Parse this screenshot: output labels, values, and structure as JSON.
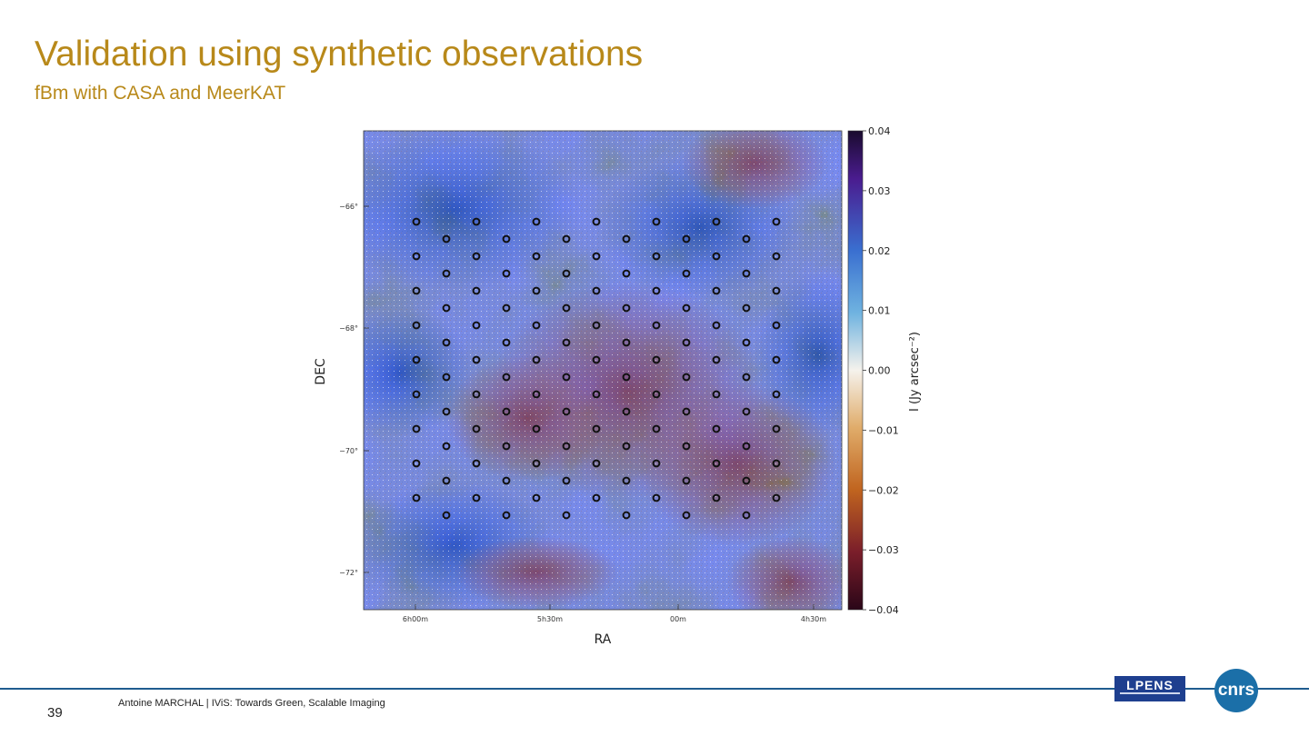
{
  "slide": {
    "title": "Validation using synthetic observations",
    "subtitle": "fBm with CASA and MeerKAT",
    "page_number": "39",
    "footer": "Antoine MARCHAL   | IViS: Towards Green, Scalable Imaging"
  },
  "logos": {
    "lpens": "LPENS",
    "cnrs": "cnrs"
  },
  "figure": {
    "xlabel": "RA",
    "ylabel": "DEC",
    "x_ticks": [
      "6h00m",
      "5h30m",
      "00m",
      "4h30m"
    ],
    "y_ticks": [
      "−66°",
      "−68°",
      "−70°",
      "−72°"
    ],
    "colorbar_label": "I (Jy arcsec⁻²)",
    "colorbar_ticks": [
      "0.04",
      "0.03",
      "0.02",
      "0.01",
      "0.00",
      "−0.01",
      "−0.02",
      "−0.03",
      "−0.04"
    ],
    "colorbar_range": [
      -0.04,
      0.04
    ],
    "colors": {
      "blue": "#3f88c8",
      "white": "#f4f4f2",
      "orange": "#c86a2a",
      "purple": "#3b0f6f",
      "maroon": "#3a0820"
    }
  }
}
